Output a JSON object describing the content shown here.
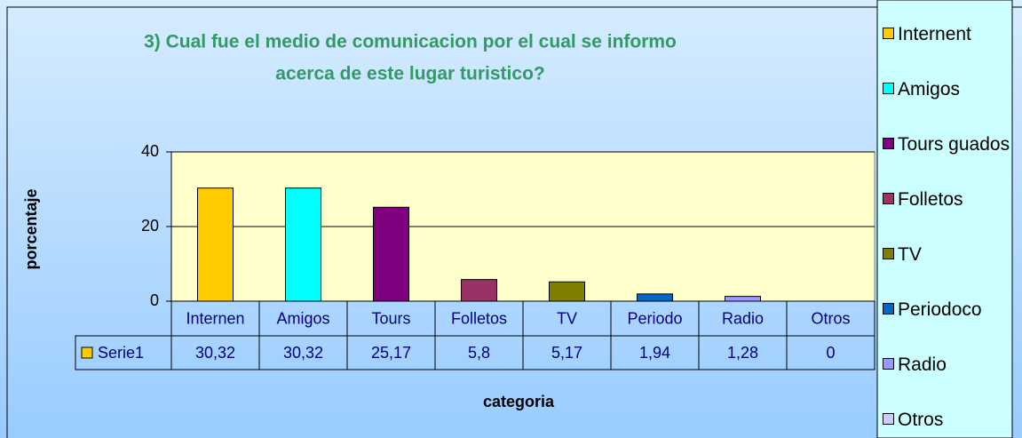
{
  "chart_data": {
    "type": "bar",
    "title": [
      "3) Cual fue el medio de comunicacion por el cual se informo",
      "acerca de este lugar turistico?"
    ],
    "y_label": "porcentaje",
    "x_label": "categoria",
    "categories": [
      "Internen",
      "Amigos",
      "Tours",
      "Folletos",
      "TV",
      "Periodo",
      "Radio",
      "Otros"
    ],
    "series": [
      {
        "name": "Serie1",
        "color": "#FFCC00",
        "values": [
          30.32,
          30.32,
          25.17,
          5.8,
          5.17,
          1.94,
          1.28,
          0
        ],
        "value_labels": [
          "30,32",
          "30,32",
          "25,17",
          "5,8",
          "5,17",
          "1,94",
          "1,28",
          "0"
        ]
      }
    ],
    "colors": [
      "#FFCC00",
      "#00FFFF",
      "#800080",
      "#993366",
      "#808000",
      "#0066CC",
      "#9999FF",
      "#CCCCFF"
    ],
    "legend": [
      "Internent",
      "Amigos",
      "Tours guados",
      "Folletos",
      "TV",
      "Periodoco",
      "Radio",
      "Otros"
    ],
    "legend_position": "right",
    "ylim": [
      0,
      40
    ],
    "yticks": [
      0,
      20,
      40
    ],
    "grid": true
  }
}
